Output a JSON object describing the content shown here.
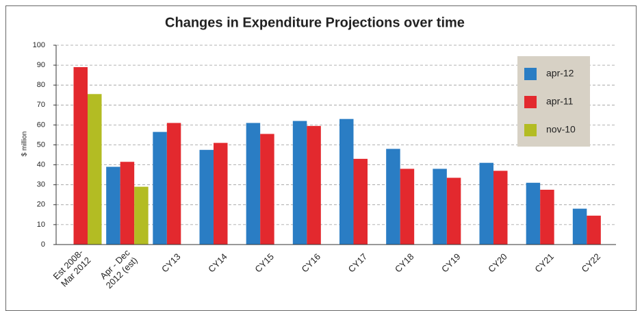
{
  "chart_data": {
    "type": "bar",
    "title": "Changes in Expenditure Projections over time",
    "ylabel": "$ million",
    "categories": [
      "Est 2008-\nMar 2012",
      "Apr - Dec\n2012 (est)",
      "CY13",
      "CY14",
      "CY15",
      "CY16",
      "CY17",
      "CY18",
      "CY19",
      "CY20",
      "CY21",
      "CY22"
    ],
    "series": [
      {
        "name": "apr-12",
        "color": "#2a7dc4",
        "values": [
          null,
          39,
          56.5,
          47.5,
          61,
          62,
          63,
          48,
          38,
          41,
          31,
          18
        ]
      },
      {
        "name": "apr-11",
        "color": "#e3292e",
        "values": [
          89,
          41.5,
          61,
          51,
          55.5,
          59.5,
          43,
          38,
          33.5,
          37,
          27.5,
          14.5
        ]
      },
      {
        "name": "nov-10",
        "color": "#b3bc23",
        "values": [
          75.5,
          29,
          null,
          null,
          null,
          null,
          null,
          null,
          null,
          null,
          null,
          null
        ]
      }
    ],
    "ylim": [
      0,
      100
    ],
    "yticks": [
      0,
      10,
      20,
      30,
      40,
      50,
      60,
      70,
      80,
      90,
      100
    ],
    "grid": true,
    "legend": "upper right"
  }
}
